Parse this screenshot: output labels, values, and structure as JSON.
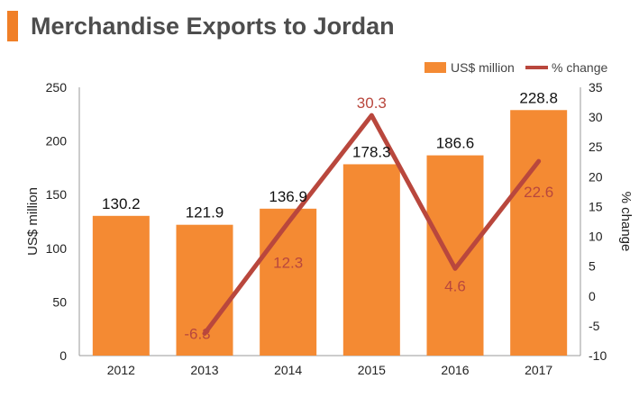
{
  "title": "Merchandise Exports to Jordan",
  "colors": {
    "bar": "#f48a33",
    "line": "#b9473d",
    "accent": "#f07f27",
    "title": "#4d4d4d"
  },
  "chart_data": {
    "type": "bar",
    "categories": [
      "2012",
      "2013",
      "2014",
      "2015",
      "2016",
      "2017"
    ],
    "series": [
      {
        "name": "US$ million",
        "type": "bar",
        "axis": "left",
        "values": [
          130.2,
          121.9,
          136.9,
          178.3,
          186.6,
          228.8
        ]
      },
      {
        "name": "% change",
        "type": "line",
        "axis": "right",
        "values": [
          null,
          -6.3,
          12.3,
          30.3,
          4.6,
          22.6
        ]
      }
    ],
    "ylabel": "US$ million",
    "y2label": "% change",
    "ylim": [
      0,
      250
    ],
    "y2lim": [
      -10,
      35
    ],
    "yticks": [
      0,
      50,
      100,
      150,
      200,
      250
    ],
    "y2ticks": [
      -10,
      -5,
      0,
      5,
      10,
      15,
      20,
      25,
      30,
      35
    ],
    "legend_position": "top-right",
    "grid": false
  }
}
